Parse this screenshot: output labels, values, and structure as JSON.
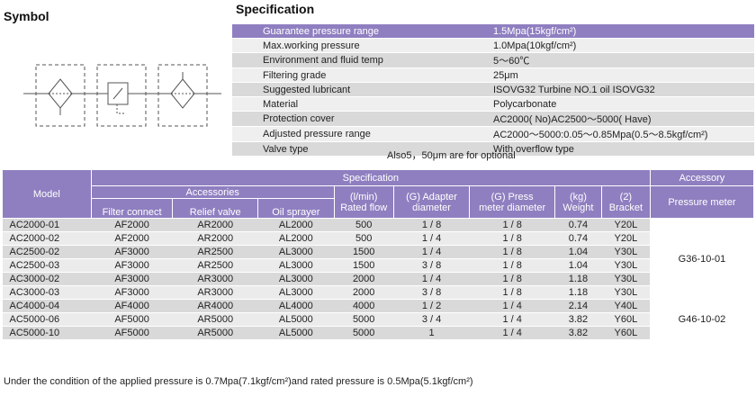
{
  "headings": {
    "symbol": "Symbol",
    "specification": "Specification"
  },
  "spec_rows": [
    {
      "k": "Guarantee pressure range",
      "v": "1.5Mpa(15kgf/cm²)"
    },
    {
      "k": "Max.working pressure",
      "v": "1.0Mpa(10kgf/cm²)"
    },
    {
      "k": "Environment and fluid temp",
      "v": "5～60℃"
    },
    {
      "k": "Filtering grade",
      "v": "25μm"
    },
    {
      "k": "Suggested lubricant",
      "v": "ISOVG32 Turbine NO.1 oil ISOVG32"
    },
    {
      "k": "Material",
      "v": "Polycarbonate"
    },
    {
      "k": "Protection cover",
      "v": "AC2000(  No)AC2500～5000(  Have)"
    },
    {
      "k": "Adjusted pressure range",
      "v": "AC2000～5000:0.05～0.85Mpa(0.5～8.5kgf/cm²)"
    },
    {
      "k": "Valve type",
      "v": "With overflow type"
    }
  ],
  "note_optional": "Also5，50μm are for optional",
  "main_table": {
    "model": "Model",
    "specification": "Specification",
    "accessory": "Accessory",
    "accessories": "Accessories",
    "filter_connect": "Filter connect",
    "relief_valve": "Relief valve",
    "oil_sprayer": "Oil sprayer",
    "rated_flow_unit": "(l/min)",
    "rated_flow": "Rated flow",
    "adapter_unit": "(G) Adapter",
    "adapter": "diameter",
    "press_unit": "(G) Press",
    "press": "meter diameter",
    "weight_unit": "(kg)",
    "weight": "Weight",
    "bracket_unit": "(2)",
    "bracket": "Bracket",
    "pressure_meter": "Pressure meter",
    "rows": [
      [
        "AC2000-01",
        "AF2000",
        "AR2000",
        "AL2000",
        "500",
        "1 / 8",
        "1 / 8",
        "0.74",
        "Y20L"
      ],
      [
        "AC2000-02",
        "AF2000",
        "AR2000",
        "AL2000",
        "500",
        "1 / 4",
        "1 / 8",
        "0.74",
        "Y20L"
      ],
      [
        "AC2500-02",
        "AF3000",
        "AR2500",
        "AL3000",
        "1500",
        "1 / 4",
        "1 / 8",
        "1.04",
        "Y30L"
      ],
      [
        "AC2500-03",
        "AF3000",
        "AR2500",
        "AL3000",
        "1500",
        "3 / 8",
        "1 / 8",
        "1.04",
        "Y30L"
      ],
      [
        "AC3000-02",
        "AF3000",
        "AR3000",
        "AL3000",
        "2000",
        "1 / 4",
        "1 / 8",
        "1.18",
        "Y30L"
      ],
      [
        "AC3000-03",
        "AF3000",
        "AR3000",
        "AL3000",
        "2000",
        "3 / 8",
        "1 / 8",
        "1.18",
        "Y30L"
      ],
      [
        "AC4000-04",
        "AF4000",
        "AR4000",
        "AL4000",
        "4000",
        "1 / 2",
        "1 / 4",
        "2.14",
        "Y40L"
      ],
      [
        "AC5000-06",
        "AF5000",
        "AR5000",
        "AL5000",
        "5000",
        "3 / 4",
        "1 / 4",
        "3.82",
        "Y60L"
      ],
      [
        "AC5000-10",
        "AF5000",
        "AR5000",
        "AL5000",
        "5000",
        "1",
        "1 / 4",
        "3.82",
        "Y60L"
      ]
    ],
    "meter_a": "G36-10-01",
    "meter_b": "G46-10-02"
  },
  "footnote": "Under the condition of the applied pressure is 0.7Mpa(7.1kgf/cm²)and rated pressure is 0.5Mpa(5.1kgf/cm²)"
}
